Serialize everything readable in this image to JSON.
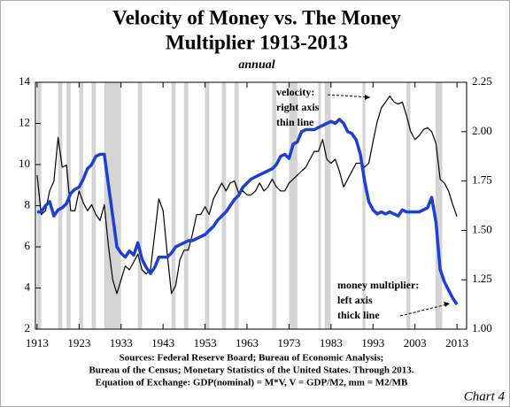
{
  "chart_data": {
    "type": "line",
    "title": [
      "Velocity of Money vs. The Money",
      "Multiplier  1913-2013"
    ],
    "subtitle": "annual",
    "x": [
      1913,
      1914,
      1915,
      1916,
      1917,
      1918,
      1919,
      1920,
      1921,
      1922,
      1923,
      1924,
      1925,
      1926,
      1927,
      1928,
      1929,
      1930,
      1931,
      1932,
      1933,
      1934,
      1935,
      1936,
      1937,
      1938,
      1939,
      1940,
      1941,
      1942,
      1943,
      1944,
      1945,
      1946,
      1947,
      1948,
      1949,
      1950,
      1951,
      1952,
      1953,
      1954,
      1955,
      1956,
      1957,
      1958,
      1959,
      1960,
      1961,
      1962,
      1963,
      1964,
      1965,
      1966,
      1967,
      1968,
      1969,
      1970,
      1971,
      1972,
      1973,
      1974,
      1975,
      1976,
      1977,
      1978,
      1979,
      1980,
      1981,
      1982,
      1983,
      1984,
      1985,
      1986,
      1987,
      1988,
      1989,
      1990,
      1991,
      1992,
      1993,
      1994,
      1995,
      1996,
      1997,
      1998,
      1999,
      2000,
      2001,
      2002,
      2003,
      2004,
      2005,
      2006,
      2007,
      2008,
      2009,
      2010,
      2011,
      2012,
      2013
    ],
    "series": [
      {
        "name": "money multiplier",
        "color": "#1f3fd0",
        "axis": "y",
        "width": 3.5,
        "values": [
          7.7,
          7.7,
          8.0,
          8.2,
          7.5,
          7.8,
          7.9,
          8.1,
          8.6,
          8.8,
          8.9,
          9.3,
          9.8,
          10.0,
          10.4,
          10.5,
          10.5,
          9.0,
          7.5,
          6.0,
          5.7,
          5.5,
          5.8,
          5.6,
          6.2,
          5.4,
          5.0,
          4.7,
          5.0,
          5.5,
          5.5,
          5.5,
          5.7,
          6.0,
          6.1,
          6.2,
          6.3,
          6.3,
          6.4,
          6.5,
          6.6,
          6.8,
          7.0,
          7.3,
          7.5,
          7.7,
          8.0,
          8.3,
          8.5,
          8.9,
          9.1,
          9.3,
          9.4,
          9.5,
          9.6,
          9.7,
          9.8,
          10.0,
          10.4,
          10.5,
          10.3,
          11.0,
          11.1,
          11.6,
          11.7,
          11.7,
          11.7,
          11.8,
          11.9,
          12.0,
          12.1,
          12.0,
          12.2,
          12.0,
          11.6,
          11.5,
          11.2,
          10.5,
          9.2,
          8.2,
          7.8,
          7.6,
          7.7,
          7.6,
          7.7,
          7.6,
          7.5,
          7.8,
          7.7,
          7.7,
          7.7,
          7.7,
          7.8,
          7.9,
          8.4,
          7.2,
          4.9,
          4.3,
          3.9,
          3.5,
          3.2
        ]
      },
      {
        "name": "velocity",
        "color": "#000000",
        "axis": "y2",
        "width": 1.2,
        "values": [
          1.78,
          1.58,
          1.6,
          1.7,
          1.75,
          1.97,
          1.82,
          1.83,
          1.6,
          1.6,
          1.7,
          1.64,
          1.6,
          1.63,
          1.58,
          1.55,
          1.63,
          1.42,
          1.25,
          1.18,
          1.25,
          1.32,
          1.3,
          1.34,
          1.38,
          1.3,
          1.28,
          1.3,
          1.48,
          1.66,
          1.6,
          1.38,
          1.18,
          1.22,
          1.35,
          1.4,
          1.4,
          1.48,
          1.58,
          1.58,
          1.62,
          1.58,
          1.66,
          1.7,
          1.74,
          1.7,
          1.74,
          1.75,
          1.69,
          1.7,
          1.68,
          1.68,
          1.7,
          1.74,
          1.7,
          1.72,
          1.76,
          1.72,
          1.7,
          1.7,
          1.74,
          1.76,
          1.78,
          1.8,
          1.82,
          1.86,
          1.9,
          1.9,
          1.96,
          1.86,
          1.84,
          1.86,
          1.8,
          1.72,
          1.76,
          1.8,
          1.84,
          1.84,
          1.82,
          1.84,
          1.95,
          2.05,
          2.12,
          2.15,
          2.18,
          2.15,
          2.14,
          2.15,
          2.08,
          2.0,
          1.96,
          1.98,
          2.01,
          2.02,
          2.0,
          1.94,
          1.76,
          1.74,
          1.7,
          1.63,
          1.57
        ]
      }
    ],
    "xlim": [
      1912.6,
      2015.3
    ],
    "xticks": [
      1913,
      1923,
      1933,
      1943,
      1953,
      1963,
      1973,
      1983,
      1993,
      2003,
      2013
    ],
    "ylim": [
      2,
      14
    ],
    "yticks": [
      2,
      4,
      6,
      8,
      10,
      12,
      14
    ],
    "y2lim": [
      1.0,
      2.25
    ],
    "y2ticks": [
      {
        "value": 1.0,
        "label": "1.00"
      },
      1.25,
      {
        "value": 1.5,
        "label": "1.50"
      },
      1.75,
      {
        "value": 2.0,
        "label": "2.00"
      },
      2.25
    ],
    "shaded_color": "#d4d4d4",
    "shaded_periods": [
      [
        1913,
        1914
      ],
      [
        1918,
        1919
      ],
      [
        1920,
        1921
      ],
      [
        1923,
        1924
      ],
      [
        1926,
        1927
      ],
      [
        1929,
        1933
      ],
      [
        1937,
        1938
      ],
      [
        1945,
        1946
      ],
      [
        1948,
        1949
      ],
      [
        1953,
        1954
      ],
      [
        1957,
        1958
      ],
      [
        1960,
        1961
      ],
      [
        1969,
        1970
      ],
      [
        1973,
        1975
      ],
      [
        1980,
        1980.6
      ],
      [
        1981.5,
        1982.9
      ],
      [
        1990.5,
        1991.2
      ],
      [
        2001,
        2001.9
      ],
      [
        2007.9,
        2009.5
      ]
    ],
    "annotations": [
      [
        "velocity:",
        "right axis",
        "thin line"
      ],
      [
        "money multiplier:",
        "left axis",
        "thick line"
      ]
    ],
    "sources": [
      "Sources: Federal Reserve Board; Bureau of Economic Analysis;",
      "Bureau of the Census; Monetary Statistics of the United States. Through  2013.",
      "Equation of Exchange: GDP(nominal) = M*V, V = GDP/M2, mm = M2/MB"
    ],
    "footer": "Chart 4"
  }
}
